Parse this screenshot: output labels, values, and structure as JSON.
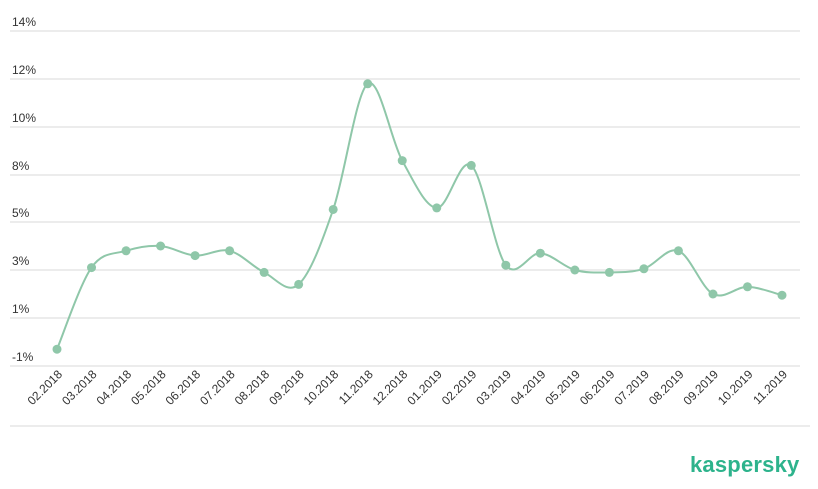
{
  "brand": {
    "logo_text": "kaspersky",
    "color": "#2db38c"
  },
  "colors": {
    "line": "#8fc7a9",
    "marker": "#8fc7a9",
    "grid": "#dadada",
    "tick_text": "#333333"
  },
  "chart_data": {
    "type": "line",
    "categories": [
      "02.2018",
      "03.2018",
      "04.2018",
      "05.2018",
      "06.2018",
      "07.2018",
      "08.2018",
      "09.2018",
      "10.2018",
      "11.2018",
      "12.2018",
      "01.2019",
      "02.2019",
      "03.2019",
      "04.2019",
      "05.2019",
      "06.2019",
      "07.2019",
      "08.2019",
      "09.2019",
      "10.2019",
      "11.2019"
    ],
    "series": [
      {
        "values": [
          -0.3,
          3.1,
          3.8,
          4.0,
          3.6,
          3.8,
          2.9,
          2.4,
          5.8,
          11.8,
          8.6,
          5.9,
          8.4,
          3.2,
          3.7,
          3.0,
          2.9,
          3.05,
          3.8,
          2.0,
          2.3,
          1.95
        ]
      }
    ],
    "yticks": [
      {
        "value": -1,
        "label": "-1%"
      },
      {
        "value": 1,
        "label": "1%"
      },
      {
        "value": 3,
        "label": "3%"
      },
      {
        "value": 5,
        "label": "5%"
      },
      {
        "value": 8,
        "label": "8%"
      },
      {
        "value": 10,
        "label": "10%"
      },
      {
        "value": 12,
        "label": "12%"
      },
      {
        "value": 14,
        "label": "14%"
      }
    ],
    "ylim": [
      -1,
      14
    ],
    "grid": true,
    "title": "",
    "xlabel": "",
    "ylabel": ""
  }
}
